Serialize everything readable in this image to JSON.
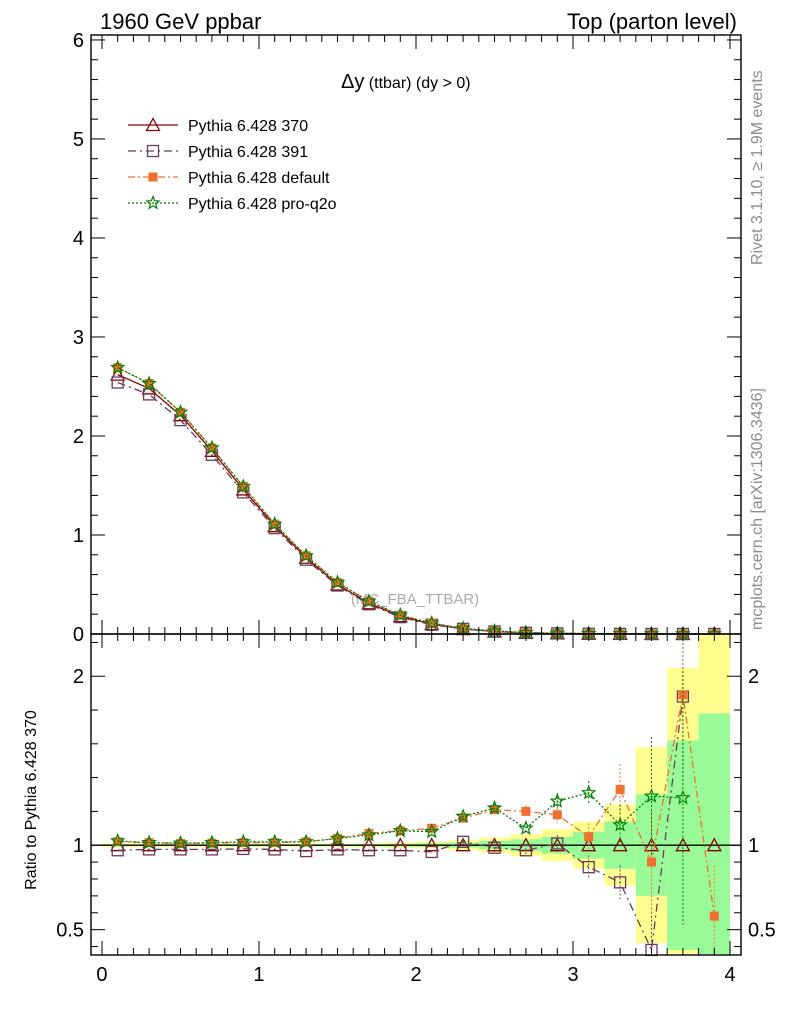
{
  "header": {
    "left": "1960 GeV ppbar",
    "right": "Top (parton level)"
  },
  "side_labels": {
    "rivet": "Rivet 3.1.10, ≥ 1.9M events",
    "mcplots": "mcplots.cern.ch [arXiv:1306.3436]"
  },
  "chart_data": [
    {
      "type": "line",
      "panel": "main",
      "title_symbol": "Δy",
      "title_rest": " (ttbar) (dy > 0)",
      "watermark": "(MC_FBA_TTBAR)",
      "xlim": [
        -0.07,
        4.07
      ],
      "ylim": [
        0,
        6.05
      ],
      "yticks": [
        "0",
        "1",
        "2",
        "3",
        "4",
        "5",
        "6"
      ],
      "xticks": [
        "0",
        "1",
        "2",
        "3",
        "4"
      ],
      "legend_position": "top-left",
      "x": [
        0.1,
        0.3,
        0.5,
        0.7,
        0.9,
        1.1,
        1.3,
        1.5,
        1.7,
        1.9,
        2.1,
        2.3,
        2.5,
        2.7,
        2.9,
        3.1,
        3.3,
        3.5,
        3.7,
        3.9
      ],
      "series": [
        {
          "name": "Pythia 6.428 370",
          "color": "#8b0000",
          "marker": "triangle",
          "dash": "",
          "values": [
            2.62,
            2.48,
            2.21,
            1.85,
            1.46,
            1.09,
            0.77,
            0.5,
            0.31,
            0.18,
            0.1,
            0.05,
            0.025,
            0.012,
            0.006,
            0.003,
            0.0015,
            0.0007,
            0.0003,
            0.0001
          ]
        },
        {
          "name": "Pythia 6.428 391",
          "color": "#6b3a5a",
          "marker": "square-open",
          "dash": "8 4 2 4",
          "values": [
            2.54,
            2.42,
            2.16,
            1.81,
            1.43,
            1.07,
            0.75,
            0.49,
            0.3,
            0.17,
            0.094,
            0.052,
            0.025,
            0.012,
            0.006,
            0.0027,
            0.0012,
            0.0003,
            0.0006,
            0.0001
          ]
        },
        {
          "name": "Pythia 6.428 default",
          "color": "#f07030",
          "marker": "square-filled",
          "dash": "7 3 2 3",
          "values": [
            2.69,
            2.53,
            2.24,
            1.88,
            1.49,
            1.11,
            0.79,
            0.52,
            0.33,
            0.19,
            0.11,
            0.057,
            0.03,
            0.014,
            0.007,
            0.0032,
            0.0017,
            0.0006,
            0.0006,
            6e-05
          ]
        },
        {
          "name": "Pythia 6.428 pro-q2o",
          "color": "#008000",
          "marker": "star",
          "dash": "2 2",
          "values": [
            2.69,
            2.53,
            2.24,
            1.88,
            1.49,
            1.11,
            0.79,
            0.52,
            0.33,
            0.19,
            0.11,
            0.057,
            0.03,
            0.013,
            0.0074,
            0.0039,
            0.0017,
            0.0009,
            0.0004,
            0.0002
          ]
        }
      ]
    },
    {
      "type": "line",
      "panel": "ratio",
      "ylabel": "Ratio to Pythia 6.428 370",
      "xlim": [
        -0.07,
        4.07
      ],
      "ylim": [
        0.35,
        2.25
      ],
      "reference": 1,
      "yticks_major": [
        {
          "value": 0.5,
          "label": "0.5"
        },
        {
          "value": 1,
          "label": "1"
        },
        {
          "value": 2,
          "label": "2"
        }
      ],
      "xticks": [
        "0",
        "1",
        "2",
        "3",
        "4"
      ],
      "band_edges": [
        0.0,
        0.2,
        0.4,
        0.6,
        0.8,
        1.0,
        1.2,
        1.4,
        1.6,
        1.8,
        2.0,
        2.2,
        2.4,
        2.6,
        2.8,
        3.0,
        3.2,
        3.4,
        3.6,
        3.8,
        4.0
      ],
      "band_green_lo": [
        0.995,
        0.995,
        0.995,
        0.995,
        0.995,
        0.995,
        0.995,
        0.995,
        0.994,
        0.992,
        0.99,
        0.985,
        0.975,
        0.965,
        0.95,
        0.92,
        0.86,
        0.7,
        0.38,
        0.35
      ],
      "band_green_hi": [
        1.005,
        1.005,
        1.005,
        1.005,
        1.005,
        1.005,
        1.005,
        1.005,
        1.006,
        1.008,
        1.01,
        1.015,
        1.025,
        1.035,
        1.05,
        1.08,
        1.14,
        1.3,
        1.62,
        1.78
      ],
      "band_yellow_lo": [
        0.99,
        0.99,
        0.99,
        0.99,
        0.99,
        0.99,
        0.99,
        0.99,
        0.988,
        0.984,
        0.98,
        0.97,
        0.955,
        0.935,
        0.905,
        0.86,
        0.76,
        0.42,
        0.35,
        0.35
      ],
      "band_yellow_hi": [
        1.01,
        1.01,
        1.01,
        1.01,
        1.01,
        1.01,
        1.01,
        1.01,
        1.012,
        1.016,
        1.02,
        1.03,
        1.045,
        1.065,
        1.095,
        1.14,
        1.24,
        1.58,
        2.05,
        2.25
      ],
      "x": [
        0.1,
        0.3,
        0.5,
        0.7,
        0.9,
        1.1,
        1.3,
        1.5,
        1.7,
        1.9,
        2.1,
        2.3,
        2.5,
        2.7,
        2.9,
        3.1,
        3.3,
        3.5,
        3.7,
        3.9
      ],
      "series": [
        {
          "name": "Pythia 6.428 391",
          "color": "#6b3a5a",
          "marker": "square-open",
          "dash": "8 4 2 4",
          "values": [
            0.97,
            0.975,
            0.975,
            0.975,
            0.978,
            0.975,
            0.965,
            0.975,
            0.97,
            0.97,
            0.96,
            1.02,
            0.985,
            0.97,
            1.01,
            0.87,
            0.78,
            0.38,
            1.88,
            null
          ],
          "errors": [
            0.003,
            0.003,
            0.003,
            0.003,
            0.003,
            0.004,
            0.005,
            0.006,
            0.008,
            0.01,
            0.013,
            0.018,
            0.025,
            0.035,
            0.05,
            0.07,
            0.1,
            0.25,
            0.5,
            0
          ]
        },
        {
          "name": "Pythia 6.428 default",
          "color": "#f07030",
          "marker": "square-filled",
          "dash": "7 3 2 3",
          "values": [
            1.02,
            1.015,
            1.01,
            1.012,
            1.015,
            1.015,
            1.02,
            1.04,
            1.07,
            1.085,
            1.1,
            1.16,
            1.21,
            1.2,
            1.18,
            1.05,
            1.33,
            0.9,
            1.89,
            0.58
          ],
          "errors": [
            0.003,
            0.003,
            0.003,
            0.003,
            0.003,
            0.004,
            0.005,
            0.006,
            0.008,
            0.01,
            0.013,
            0.018,
            0.025,
            0.035,
            0.05,
            0.08,
            0.15,
            0.3,
            0.4,
            0.3
          ]
        },
        {
          "name": "Pythia 6.428 pro-q2o",
          "color": "#008000",
          "marker": "star",
          "dash": "2 2",
          "values": [
            1.025,
            1.015,
            1.012,
            1.015,
            1.02,
            1.02,
            1.02,
            1.04,
            1.06,
            1.085,
            1.08,
            1.17,
            1.22,
            1.1,
            1.26,
            1.31,
            1.12,
            1.29,
            1.28,
            null
          ],
          "errors": [
            0.003,
            0.003,
            0.003,
            0.003,
            0.003,
            0.004,
            0.005,
            0.006,
            0.008,
            0.01,
            0.013,
            0.018,
            0.025,
            0.035,
            0.05,
            0.07,
            0.12,
            0.35,
            0.75,
            0
          ]
        }
      ]
    }
  ]
}
